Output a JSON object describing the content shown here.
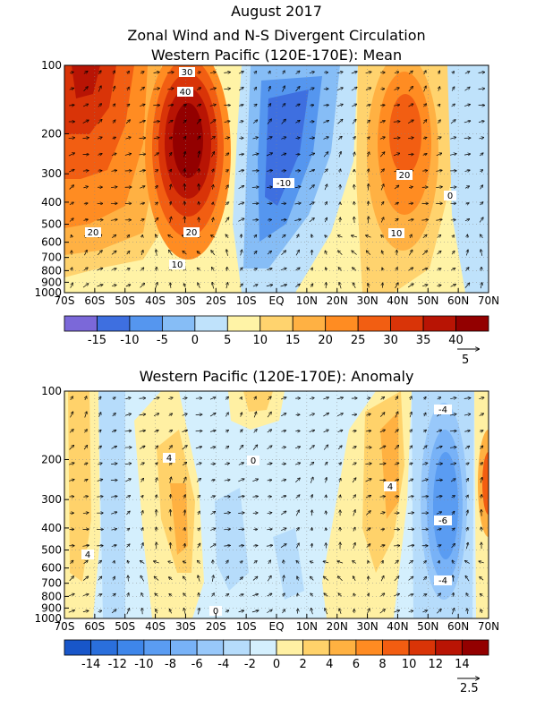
{
  "titles": {
    "main": "August 2017",
    "mean_line1": "Zonal Wind and N-S Divergent Circulation",
    "mean_line2": "Western Pacific (120E-170E): Mean",
    "anomaly": "Western Pacific (120E-170E): Anomaly"
  },
  "chart_data": [
    {
      "type": "heatmap",
      "title": "Western Pacific (120E-170E): Mean",
      "x_tick_labels": [
        "70S",
        "60S",
        "50S",
        "40S",
        "30S",
        "20S",
        "10S",
        "EQ",
        "10N",
        "20N",
        "30N",
        "40N",
        "50N",
        "60N",
        "70N"
      ],
      "x_range": [
        -70,
        70
      ],
      "y_tick_labels": [
        "100",
        "200",
        "300",
        "400",
        "500",
        "600",
        "700",
        "800",
        "900",
        "1000"
      ],
      "y_levels_hPa": [
        100,
        200,
        300,
        400,
        500,
        600,
        700,
        800,
        900,
        1000
      ],
      "y_scale": "log",
      "contour_labels": [
        "30",
        "40",
        "20",
        "20",
        "10",
        "-10",
        "20",
        "10",
        "0",
        "20"
      ],
      "colorbar": {
        "labels": [
          "-15",
          "-10",
          "-5",
          "0",
          "5",
          "10",
          "15",
          "20",
          "25",
          "30",
          "35",
          "40"
        ],
        "bounds": [
          -20,
          -15,
          -10,
          -5,
          0,
          5,
          10,
          15,
          20,
          25,
          30,
          35,
          40,
          45
        ],
        "colors": [
          "#7b68d9",
          "#3e6fe0",
          "#5596ef",
          "#86bdf6",
          "#bfe2fb",
          "#fff3a6",
          "#ffd36e",
          "#ffb143",
          "#ff8c22",
          "#f25e12",
          "#d93408",
          "#b81404",
          "#930000"
        ]
      },
      "vector_reference": "5"
    },
    {
      "type": "heatmap",
      "title": "Western Pacific (120E-170E): Anomaly",
      "x_tick_labels": [
        "70S",
        "60S",
        "50S",
        "40S",
        "30S",
        "20S",
        "10S",
        "EQ",
        "10N",
        "20N",
        "30N",
        "40N",
        "50N",
        "60N",
        "70N"
      ],
      "x_range": [
        -70,
        70
      ],
      "y_tick_labels": [
        "100",
        "200",
        "300",
        "400",
        "500",
        "600",
        "700",
        "800",
        "900",
        "1000"
      ],
      "y_levels_hPa": [
        100,
        200,
        300,
        400,
        500,
        600,
        700,
        800,
        900,
        1000
      ],
      "y_scale": "log",
      "contour_labels": [
        "4",
        "0",
        "4",
        "-4",
        "-6",
        "-4",
        "4",
        "0"
      ],
      "colorbar": {
        "labels": [
          "-14",
          "-12",
          "-10",
          "-8",
          "-6",
          "-4",
          "-2",
          "0",
          "2",
          "4",
          "6",
          "8",
          "10",
          "12",
          "14"
        ],
        "bounds": [
          -16,
          -14,
          -12,
          -10,
          -8,
          -6,
          -4,
          -2,
          0,
          2,
          4,
          6,
          8,
          10,
          12,
          14,
          16
        ],
        "colors": [
          "#1856c9",
          "#2a6fdc",
          "#3e86ea",
          "#5a9cf2",
          "#78b2f7",
          "#98c8fa",
          "#b6dcfb",
          "#d4effd",
          "#fff0a3",
          "#ffd26a",
          "#ffb141",
          "#ff8b22",
          "#f35d11",
          "#d93407",
          "#b91404",
          "#930000"
        ]
      },
      "vector_reference": "2.5"
    }
  ]
}
